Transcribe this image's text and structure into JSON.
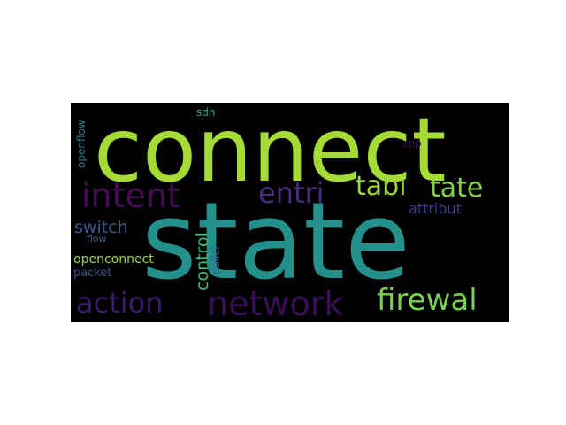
{
  "wordcloud": {
    "words": [
      {
        "id": "connect",
        "text": "connect",
        "color": "#a6db36"
      },
      {
        "id": "state",
        "text": "state",
        "color": "#23908c"
      },
      {
        "id": "intent",
        "text": "intent",
        "color": "#440e57"
      },
      {
        "id": "entri",
        "text": "entri",
        "color": "#462e7a"
      },
      {
        "id": "tabl",
        "text": "tabl",
        "color": "#9dd83b"
      },
      {
        "id": "tate",
        "text": "tate",
        "color": "#85d44a"
      },
      {
        "id": "attribut",
        "text": "attribut",
        "color": "#3b3f88"
      },
      {
        "id": "switch",
        "text": "switch",
        "color": "#3b5a8c"
      },
      {
        "id": "flow",
        "text": "flow",
        "color": "#355f8d"
      },
      {
        "id": "control",
        "text": "control",
        "color": "#3fba74"
      },
      {
        "id": "polici",
        "text": "polici",
        "color": "#33638d"
      },
      {
        "id": "openconnect",
        "text": "openconnect",
        "color": "#9bd93c"
      },
      {
        "id": "packet",
        "text": "packet",
        "color": "#3b4f8a"
      },
      {
        "id": "action",
        "text": "action",
        "color": "#3b1a68"
      },
      {
        "id": "network",
        "text": "network",
        "color": "#3a0f55"
      },
      {
        "id": "firewal",
        "text": "firewal",
        "color": "#7ad151"
      },
      {
        "id": "openflow",
        "text": "openflow",
        "color": "#2a788e"
      },
      {
        "id": "sdn",
        "text": "sdn",
        "color": "#26a585"
      },
      {
        "id": "app",
        "text": "app",
        "color": "#3a0b4f"
      }
    ]
  }
}
